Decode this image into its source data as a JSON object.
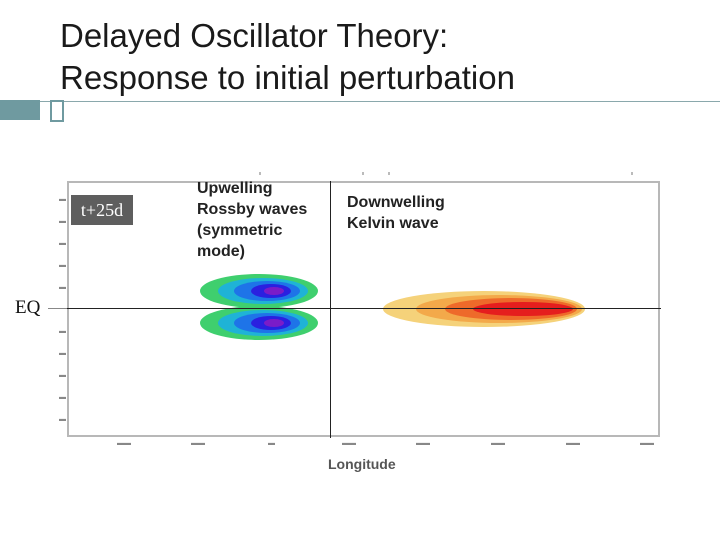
{
  "title": {
    "line1": "Delayed Oscillator Theory:",
    "line2": "Response to initial perturbation"
  },
  "figure": {
    "time_label": "t+25d",
    "equator_label": "EQ",
    "annotations": {
      "rossby_lines": [
        "Upwelling",
        "Rossby waves",
        "(symmetric",
        "mode)"
      ],
      "kelvin_lines": [
        "Downwelling",
        "Kelvin wave"
      ]
    },
    "x_axis_label": "Longitude",
    "colors": {
      "rossby": [
        "#3fcf6e",
        "#1fb3d6",
        "#1e74e8",
        "#2a20e0",
        "#7a1cc8"
      ],
      "kelvin": [
        "#f5d27a",
        "#f3a94a",
        "#ee6a2a",
        "#e51e1e"
      ]
    }
  }
}
